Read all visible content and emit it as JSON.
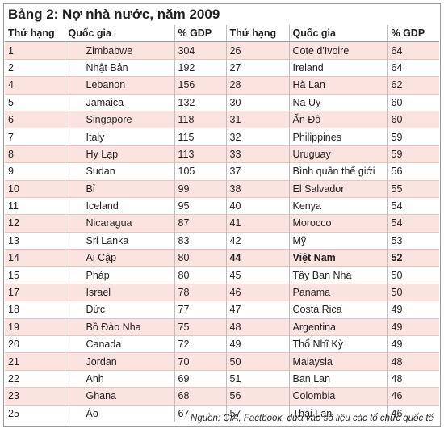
{
  "title": "Bảng 2: Nợ nhà nước, năm 2009",
  "headers": [
    "Thứ hạng",
    "Quốc gia",
    "% GDP",
    "Thứ hạng",
    "Quốc gia",
    "% GDP"
  ],
  "rows": [
    {
      "r1": "1",
      "c1": "Zimbabwe",
      "g1": "304",
      "r2": "26",
      "c2": "Cote d'Ivoire",
      "g2": "64",
      "bold2": false
    },
    {
      "r1": "2",
      "c1": "Nhật Bản",
      "g1": "192",
      "r2": "27",
      "c2": "Ireland",
      "g2": "64",
      "bold2": false
    },
    {
      "r1": "4",
      "c1": "Lebanon",
      "g1": "156",
      "r2": "28",
      "c2": "Hà Lan",
      "g2": "62",
      "bold2": false
    },
    {
      "r1": "5",
      "c1": "Jamaica",
      "g1": "132",
      "r2": "30",
      "c2": "Na Uy",
      "g2": "60",
      "bold2": false
    },
    {
      "r1": "6",
      "c1": "Singapore",
      "g1": "118",
      "r2": "31",
      "c2": "Ấn Độ",
      "g2": "60",
      "bold2": false
    },
    {
      "r1": "7",
      "c1": "Italy",
      "g1": "115",
      "r2": "32",
      "c2": "Philippines",
      "g2": "59",
      "bold2": false
    },
    {
      "r1": "8",
      "c1": "Hy Lạp",
      "g1": "113",
      "r2": "33",
      "c2": "Uruguay",
      "g2": "59",
      "bold2": false
    },
    {
      "r1": "9",
      "c1": "Sudan",
      "g1": "105",
      "r2": "37",
      "c2": "Bình quân thế giới",
      "g2": "56",
      "bold2": false
    },
    {
      "r1": "10",
      "c1": "Bỉ",
      "g1": "99",
      "r2": "38",
      "c2": "El Salvador",
      "g2": "55",
      "bold2": false
    },
    {
      "r1": "11",
      "c1": "Iceland",
      "g1": "95",
      "r2": "40",
      "c2": "Kenya",
      "g2": "54",
      "bold2": false
    },
    {
      "r1": "12",
      "c1": "Nicaragua",
      "g1": "87",
      "r2": "41",
      "c2": "Morocco",
      "g2": "54",
      "bold2": false
    },
    {
      "r1": "13",
      "c1": "Sri Lanka",
      "g1": "83",
      "r2": "42",
      "c2": "Mỹ",
      "g2": "53",
      "bold2": false
    },
    {
      "r1": "14",
      "c1": "Ai Cập",
      "g1": "80",
      "r2": "44",
      "c2": "Việt Nam",
      "g2": "52",
      "bold2": true
    },
    {
      "r1": "15",
      "c1": "Pháp",
      "g1": "80",
      "r2": "45",
      "c2": "Tây Ban Nha",
      "g2": "50",
      "bold2": false
    },
    {
      "r1": "17",
      "c1": "Israel",
      "g1": "78",
      "r2": "46",
      "c2": "Panama",
      "g2": "50",
      "bold2": false
    },
    {
      "r1": "18",
      "c1": "Đức",
      "g1": "77",
      "r2": "47",
      "c2": "Costa Rica",
      "g2": "49",
      "bold2": false
    },
    {
      "r1": "19",
      "c1": "Bồ Đào Nha",
      "g1": "75",
      "r2": "48",
      "c2": "Argentina",
      "g2": "49",
      "bold2": false
    },
    {
      "r1": "20",
      "c1": "Canada",
      "g1": "72",
      "r2": "49",
      "c2": "Thổ Nhĩ Kỳ",
      "g2": "49",
      "bold2": false
    },
    {
      "r1": "21",
      "c1": "Jordan",
      "g1": "70",
      "r2": "50",
      "c2": "Malaysia",
      "g2": "48",
      "bold2": false
    },
    {
      "r1": "22",
      "c1": "Anh",
      "g1": "69",
      "r2": "51",
      "c2": "Ban Lan",
      "g2": "48",
      "bold2": false
    },
    {
      "r1": "23",
      "c1": "Ghana",
      "g1": "68",
      "r2": "56",
      "c2": "Colombia",
      "g2": "46",
      "bold2": false
    },
    {
      "r1": "25",
      "c1": "Áo",
      "g1": "67",
      "r2": "57",
      "c2": "Thái Lan",
      "g2": "46",
      "bold2": false
    }
  ],
  "source": "Nguồn: CIA, Factbook, dựa vào số liệu các tổ chức quốc tế",
  "colors": {
    "stripe": "#fbe4e0",
    "text": "#231f20",
    "border": "#9a9a9a"
  }
}
